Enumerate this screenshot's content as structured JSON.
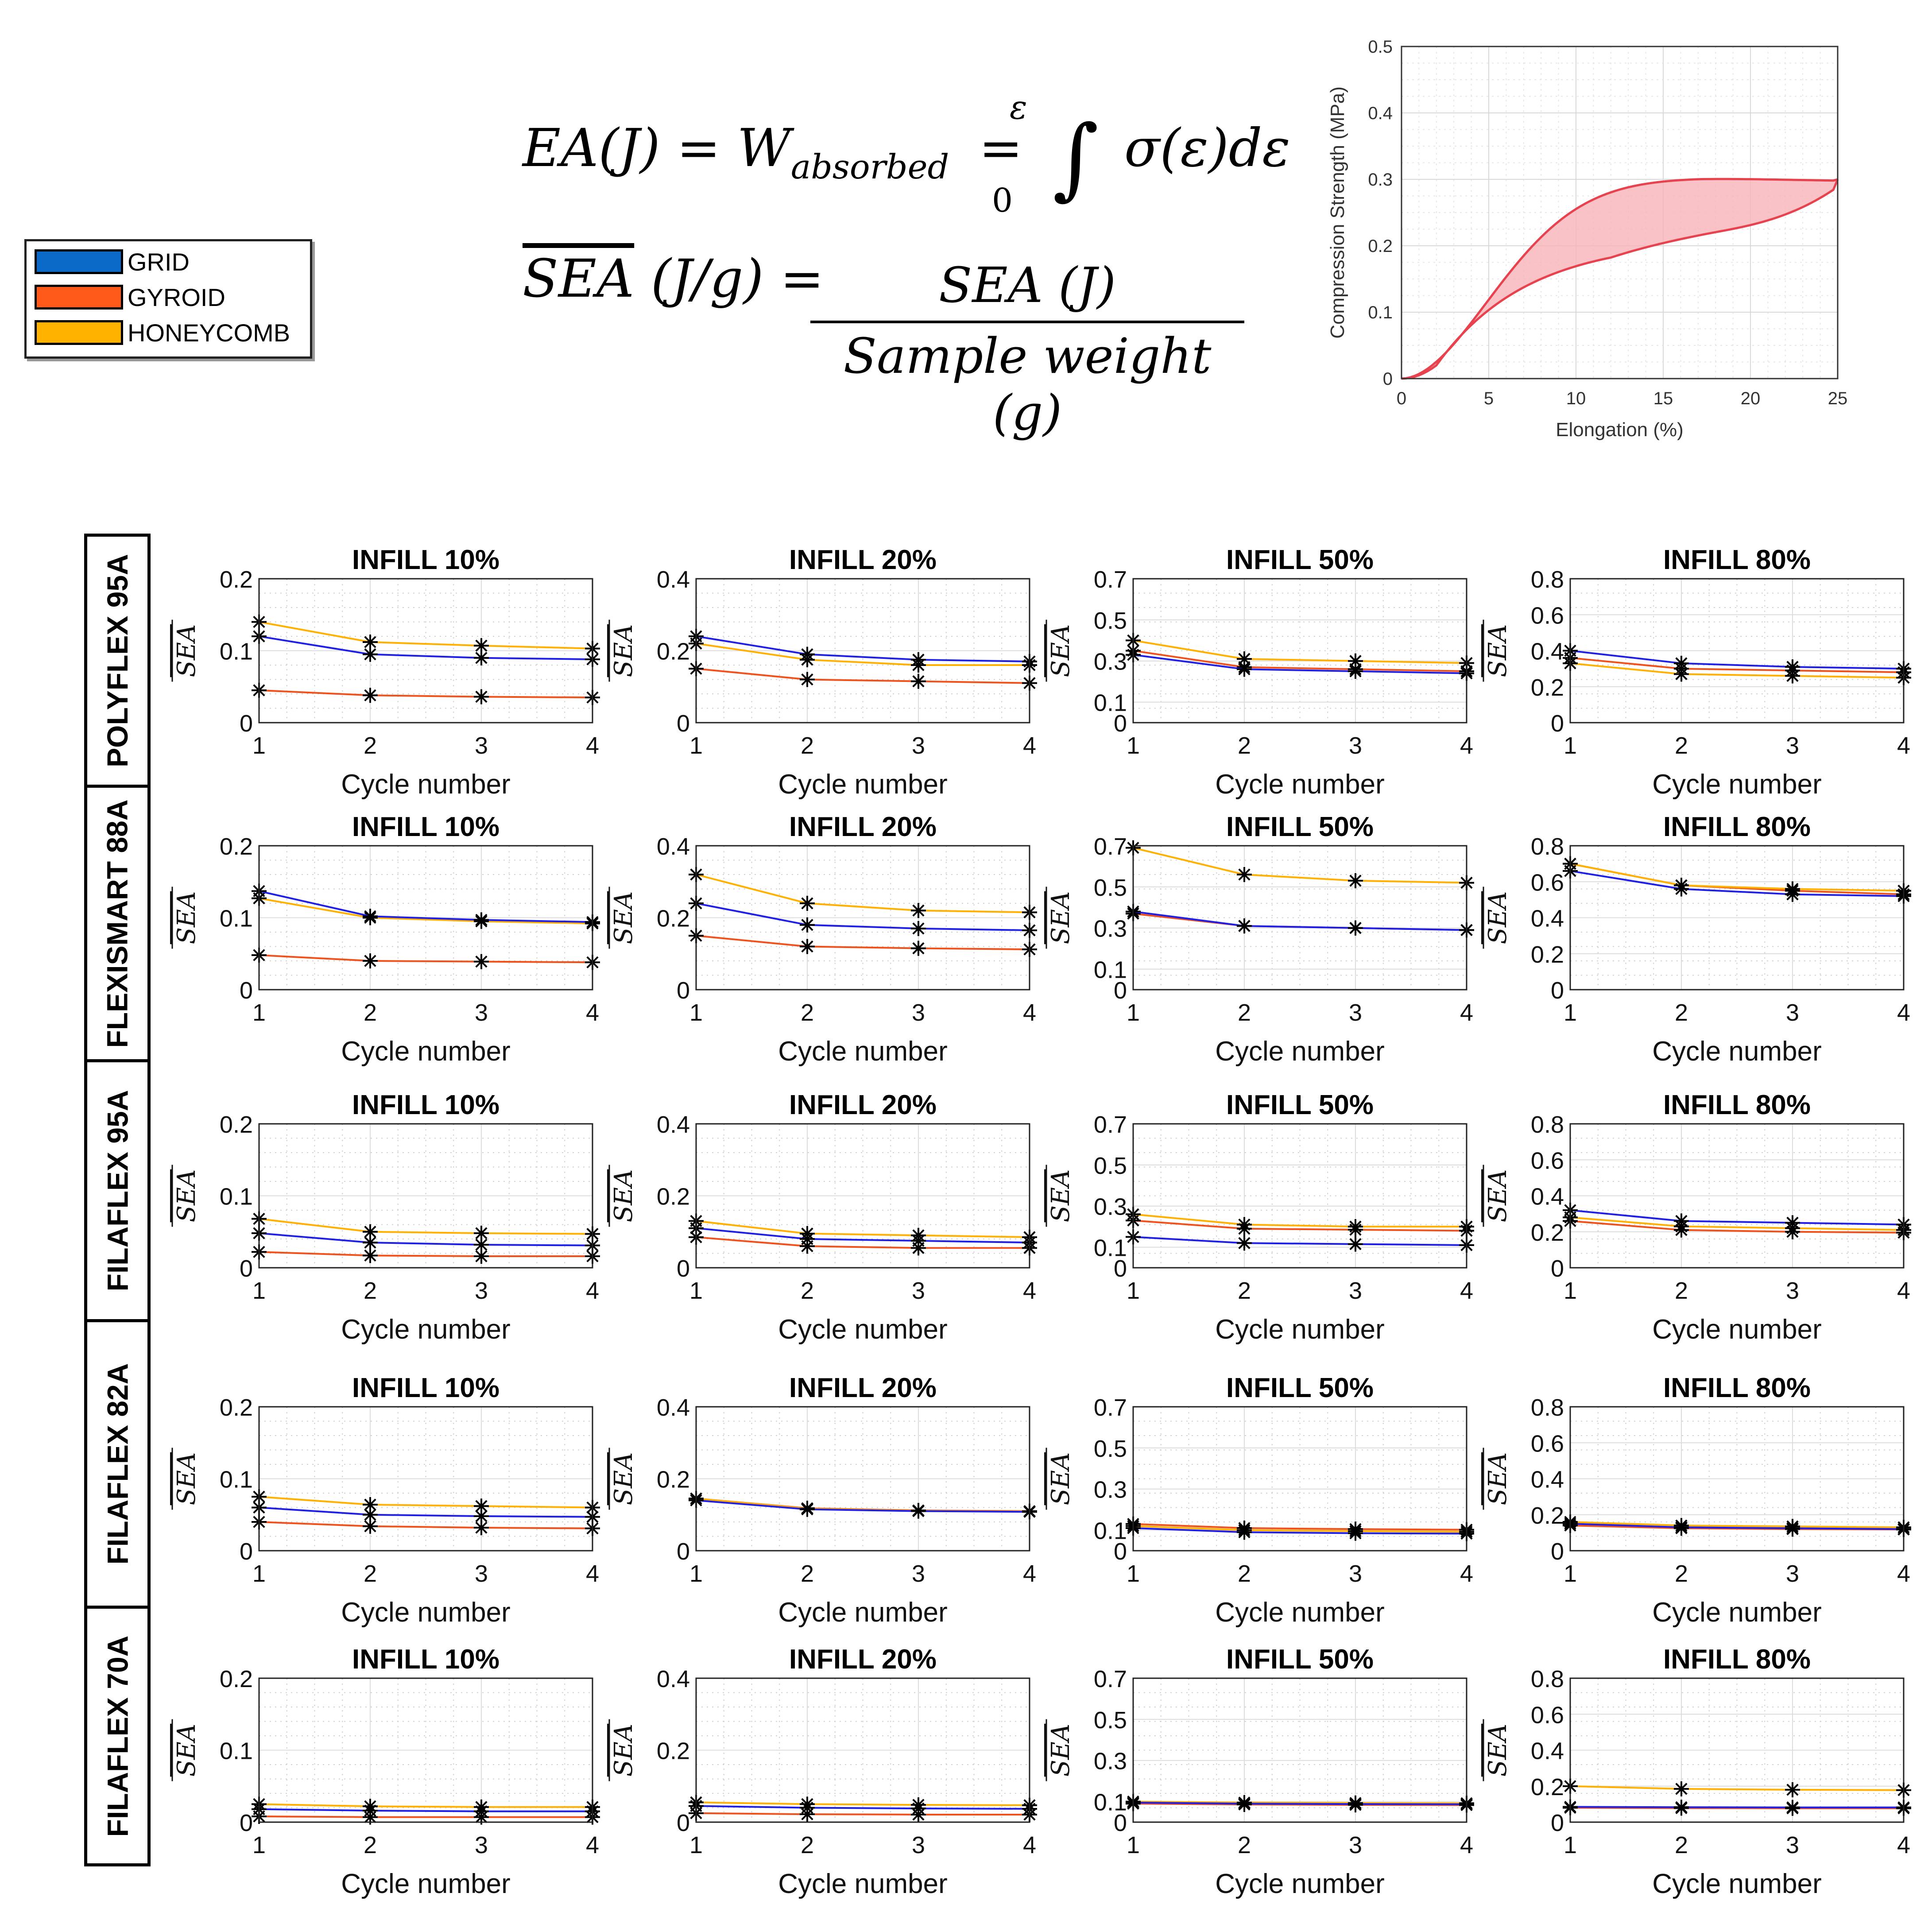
{
  "legend": {
    "items": [
      {
        "label": "GRID",
        "color": "#0b6ac8"
      },
      {
        "label": "GYROID",
        "color": "#ff5a1a"
      },
      {
        "label": "HONEYCOMB",
        "color": "#ffb300"
      }
    ]
  },
  "formulas": {
    "ea": "EA(J) = W",
    "ea_subscript": "absorbed",
    "ea_equals": "=",
    "ea_upper_limit": "ε",
    "ea_lower_limit": "0",
    "ea_integrand": "σ(ε)dε",
    "sea_lhs_symbol": "SEA",
    "sea_lhs_unit": "(J/g) =",
    "sea_numerator": "SEA (J)",
    "sea_denominator": "Sample weight (g)"
  },
  "inset_chart": {
    "xlabel": "Elongation (%)",
    "ylabel": "Compression Strength (MPa)",
    "xlim": [
      0,
      25
    ],
    "ylim": [
      0,
      0.5
    ],
    "xticks": [
      "0",
      "5",
      "10",
      "15",
      "20",
      "25"
    ],
    "yticks": [
      "0",
      "0.1",
      "0.2",
      "0.3",
      "0.4",
      "0.5"
    ],
    "line_color": "#e8424f",
    "fill_color": "#f7b3b8"
  },
  "chart_data": {
    "type": "line",
    "x": [
      1,
      2,
      3,
      4
    ],
    "xlabel": "Cycle number",
    "ylabel": "SEA",
    "xticks": [
      "1",
      "2",
      "3",
      "4"
    ],
    "series_colors": {
      "GRID": "#1f1fe6",
      "GYROID": "#f0521e",
      "HONEYCOMB": "#ffb000"
    },
    "materials": [
      "POLYFLEX 95A",
      "FLEXISMART 88A",
      "FILAFLEX 95A",
      "FILAFLEX 82A",
      "FILAFLEX 70A"
    ],
    "infills": [
      {
        "title": "INFILL 10%",
        "ylim": [
          0,
          0.2
        ],
        "yticks": [
          "0",
          "0.1",
          "0.2"
        ]
      },
      {
        "title": "INFILL 20%",
        "ylim": [
          0,
          0.4
        ],
        "yticks": [
          "0",
          "0.2",
          "0.4"
        ]
      },
      {
        "title": "INFILL 50%",
        "ylim": [
          0,
          0.7
        ],
        "yticks": [
          "0",
          "0.1",
          "0.3",
          "0.5",
          "0.7"
        ]
      },
      {
        "title": "INFILL 80%",
        "ylim": [
          0,
          0.8
        ],
        "yticks": [
          "0",
          "0.2",
          "0.4",
          "0.6",
          "0.8"
        ]
      }
    ],
    "panels": [
      [
        {
          "GRID": [
            0.12,
            0.095,
            0.09,
            0.088
          ],
          "GYROID": [
            0.045,
            0.038,
            0.036,
            0.035
          ],
          "HONEYCOMB": [
            0.14,
            0.112,
            0.107,
            0.103
          ]
        },
        {
          "GRID": [
            0.24,
            0.19,
            0.175,
            0.17
          ],
          "GYROID": [
            0.15,
            0.12,
            0.115,
            0.11
          ],
          "HONEYCOMB": [
            0.22,
            0.175,
            0.16,
            0.16
          ]
        },
        {
          "GRID": [
            0.33,
            0.26,
            0.25,
            0.24
          ],
          "GYROID": [
            0.35,
            0.27,
            0.26,
            0.25
          ],
          "HONEYCOMB": [
            0.4,
            0.31,
            0.3,
            0.29
          ]
        },
        {
          "GRID": [
            0.4,
            0.33,
            0.31,
            0.3
          ],
          "GYROID": [
            0.36,
            0.3,
            0.29,
            0.28
          ],
          "HONEYCOMB": [
            0.33,
            0.27,
            0.26,
            0.25
          ]
        }
      ],
      [
        {
          "GRID": [
            0.137,
            0.102,
            0.097,
            0.094
          ],
          "GYROID": [
            0.048,
            0.04,
            0.039,
            0.038
          ],
          "HONEYCOMB": [
            0.127,
            0.1,
            0.095,
            0.092
          ]
        },
        {
          "GRID": [
            0.24,
            0.18,
            0.17,
            0.165
          ],
          "GYROID": [
            0.15,
            0.12,
            0.115,
            0.112
          ],
          "HONEYCOMB": [
            0.32,
            0.24,
            0.22,
            0.215
          ]
        },
        {
          "GRID": [
            0.38,
            0.31,
            0.3,
            0.29
          ],
          "GYROID": [
            0.37,
            0.31,
            0.3,
            0.29
          ],
          "HONEYCOMB": [
            0.69,
            0.56,
            0.53,
            0.52
          ]
        },
        {
          "GRID": [
            0.66,
            0.56,
            0.53,
            0.52
          ],
          "GYROID": [
            0.7,
            0.58,
            0.55,
            0.53
          ],
          "HONEYCOMB": [
            0.7,
            0.58,
            0.56,
            0.55
          ]
        }
      ],
      [
        {
          "GRID": [
            0.048,
            0.035,
            0.032,
            0.031
          ],
          "GYROID": [
            0.022,
            0.017,
            0.016,
            0.016
          ],
          "HONEYCOMB": [
            0.068,
            0.05,
            0.048,
            0.047
          ]
        },
        {
          "GRID": [
            0.11,
            0.08,
            0.075,
            0.07
          ],
          "GYROID": [
            0.085,
            0.06,
            0.055,
            0.055
          ],
          "HONEYCOMB": [
            0.13,
            0.095,
            0.09,
            0.085
          ]
        },
        {
          "GRID": [
            0.15,
            0.12,
            0.115,
            0.11
          ],
          "GYROID": [
            0.23,
            0.19,
            0.185,
            0.18
          ],
          "HONEYCOMB": [
            0.26,
            0.21,
            0.2,
            0.2
          ]
        },
        {
          "GRID": [
            0.32,
            0.26,
            0.25,
            0.24
          ],
          "GYROID": [
            0.26,
            0.21,
            0.2,
            0.195
          ],
          "HONEYCOMB": [
            0.28,
            0.23,
            0.22,
            0.21
          ]
        }
      ],
      [
        {
          "GRID": [
            0.06,
            0.05,
            0.048,
            0.047
          ],
          "GYROID": [
            0.04,
            0.034,
            0.032,
            0.031
          ],
          "HONEYCOMB": [
            0.075,
            0.064,
            0.062,
            0.06
          ]
        },
        {
          "GRID": [
            0.14,
            0.115,
            0.11,
            0.108
          ],
          "GYROID": [
            0.145,
            0.118,
            0.112,
            0.11
          ],
          "HONEYCOMB": [
            0.145,
            0.117,
            0.111,
            0.109
          ]
        },
        {
          "GRID": [
            0.11,
            0.09,
            0.085,
            0.083
          ],
          "GYROID": [
            0.13,
            0.11,
            0.105,
            0.102
          ],
          "HONEYCOMB": [
            0.12,
            0.1,
            0.095,
            0.092
          ]
        },
        {
          "GRID": [
            0.15,
            0.13,
            0.125,
            0.12
          ],
          "GYROID": [
            0.14,
            0.125,
            0.12,
            0.118
          ],
          "HONEYCOMB": [
            0.16,
            0.14,
            0.135,
            0.13
          ]
        }
      ],
      [
        {
          "GRID": [
            0.018,
            0.016,
            0.015,
            0.015
          ],
          "GYROID": [
            0.008,
            0.007,
            0.007,
            0.007
          ],
          "HONEYCOMB": [
            0.025,
            0.022,
            0.021,
            0.021
          ]
        },
        {
          "GRID": [
            0.045,
            0.04,
            0.038,
            0.037
          ],
          "GYROID": [
            0.025,
            0.022,
            0.021,
            0.021
          ],
          "HONEYCOMB": [
            0.055,
            0.05,
            0.048,
            0.047
          ]
        },
        {
          "GRID": [
            0.095,
            0.09,
            0.088,
            0.087
          ],
          "GYROID": [
            0.09,
            0.086,
            0.084,
            0.083
          ],
          "HONEYCOMB": [
            0.1,
            0.095,
            0.093,
            0.092
          ]
        },
        {
          "GRID": [
            0.085,
            0.083,
            0.082,
            0.082
          ],
          "GYROID": [
            0.08,
            0.078,
            0.077,
            0.077
          ],
          "HONEYCOMB": [
            0.2,
            0.185,
            0.18,
            0.178
          ]
        }
      ]
    ]
  }
}
